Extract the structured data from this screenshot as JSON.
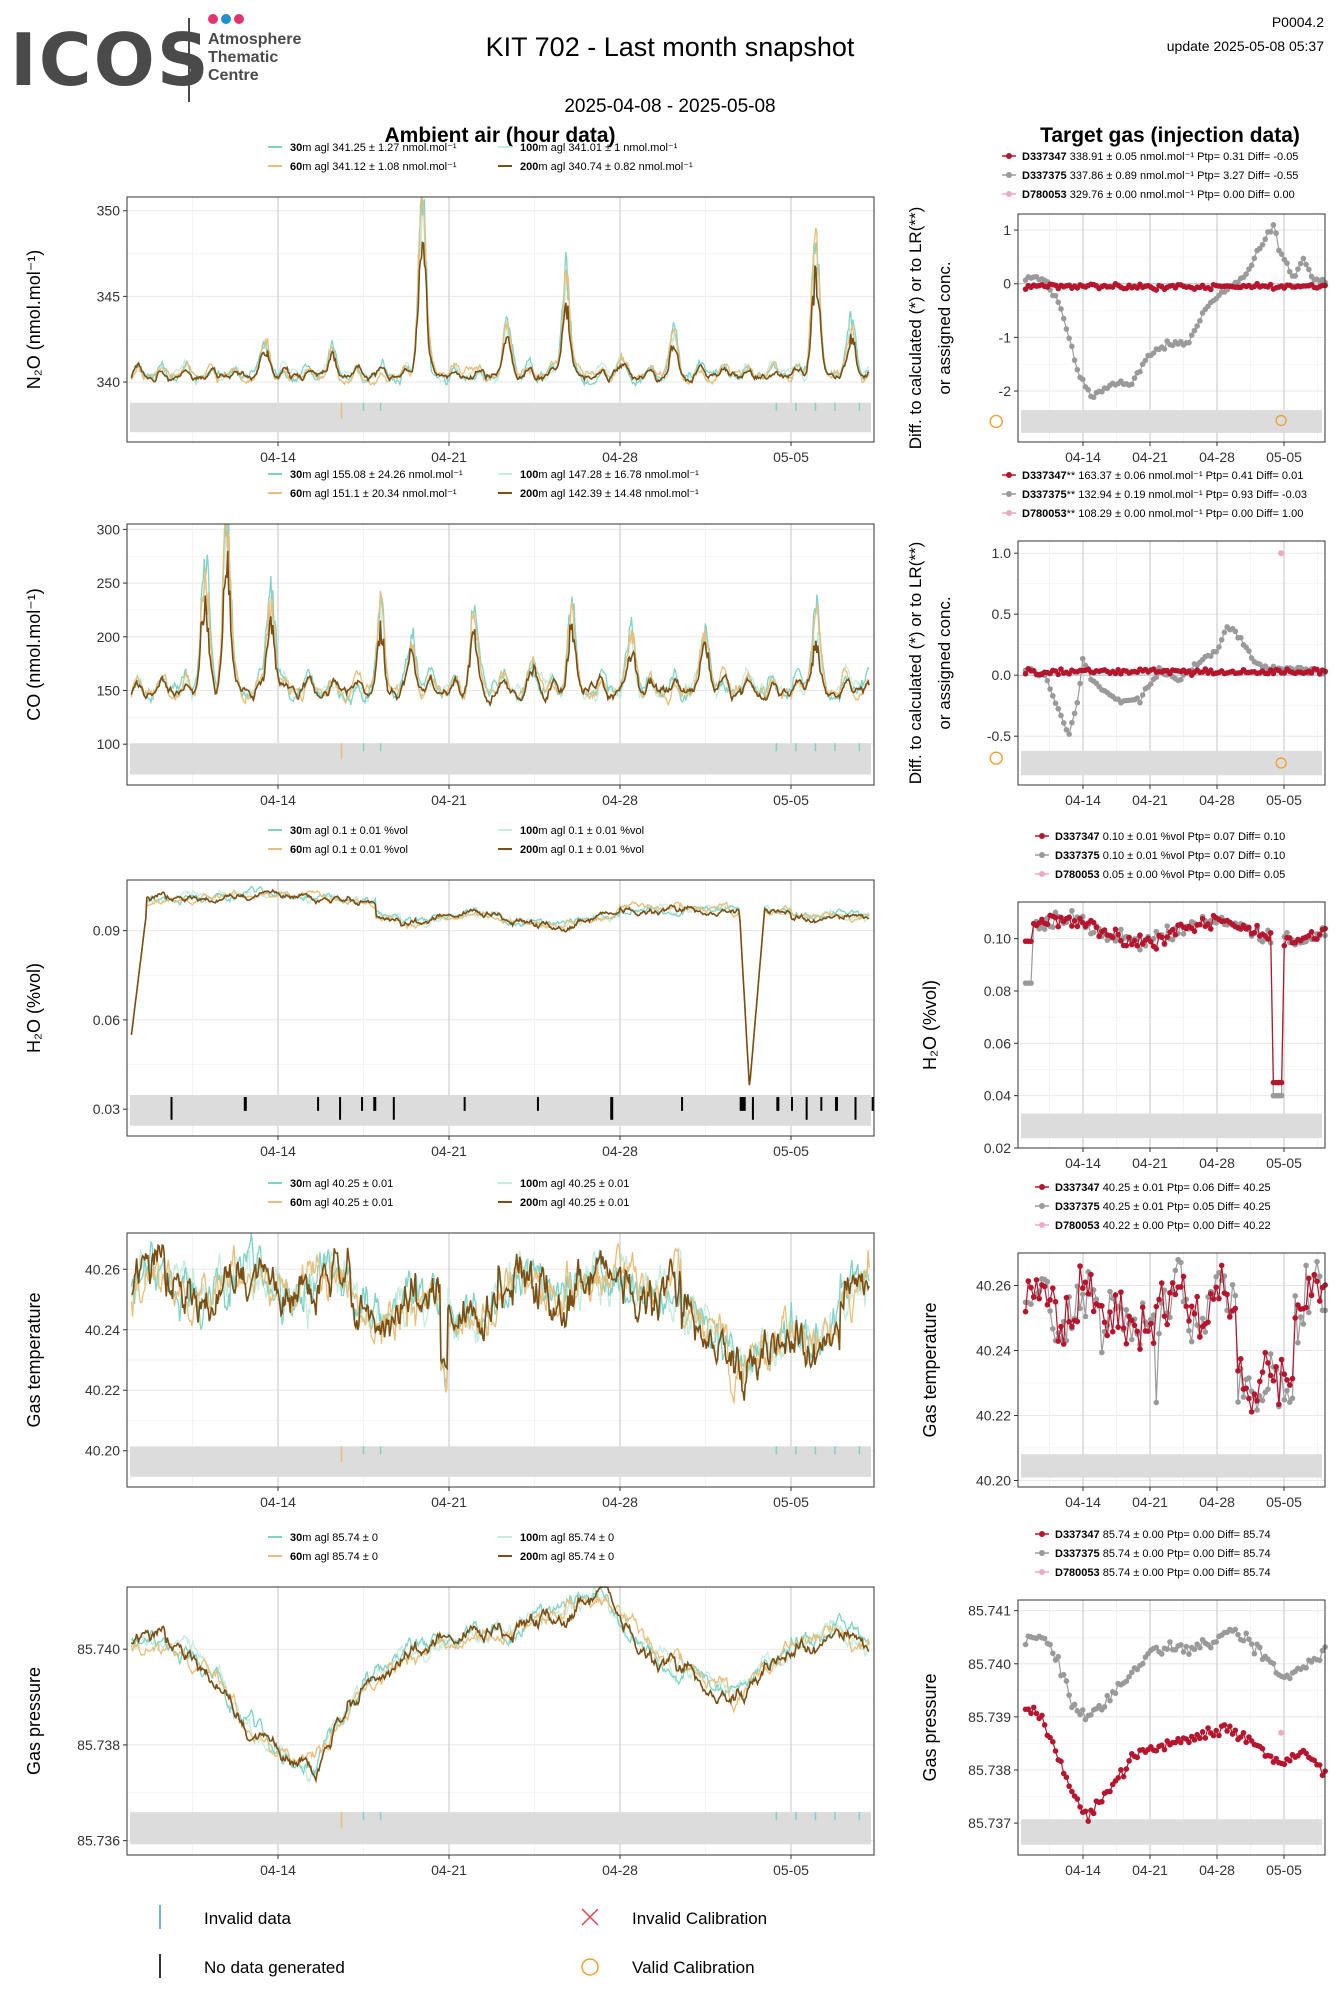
{
  "logo": {
    "word": "ICOS",
    "lines": [
      "Atmosphere",
      "Thematic",
      "Centre"
    ],
    "dot_colors": [
      "#e5336f",
      "#1f8fd7",
      "#e5336f"
    ]
  },
  "header": {
    "title": "KIT 702 - Last month snapshot",
    "date_range": "2025-04-08 - 2025-05-08",
    "code": "P0004.2",
    "update": "update  2025-05-08 05:37"
  },
  "sections": {
    "left": "Ambient air (hour data)",
    "right": "Target gas (injection data)"
  },
  "colors": {
    "30m": "#7fd3c6",
    "60m": "#e8be7a",
    "100m": "#c6ecdf",
    "200m": "#7b4f14",
    "D337347": "#b5152d",
    "D337375": "#9a9a9a",
    "D780053": "#f0a8c8",
    "invalid_data": "#5c9bd6",
    "no_data": "#000000",
    "invalid_cal": "#e8414a",
    "valid_cal": "#f0a030",
    "flag_band": "#dcdcdc"
  },
  "x_axis_ticks": [
    "04-14",
    "04-21",
    "04-28",
    "05-05"
  ],
  "chart_data": [
    {
      "id": "n2o",
      "type": "line",
      "ylabel": "N₂O (nmol.mol⁻¹)",
      "y_ticks": [
        "350",
        "345",
        "340"
      ],
      "y_tick_values": [
        350,
        345,
        340
      ],
      "ylim": [
        336.5,
        350.8
      ],
      "legend": [
        {
          "height": "30",
          "text": "m agl 341.25 ± 1.27 nmol.mol⁻¹"
        },
        {
          "height": "100",
          "text": "m agl 341.01 ± 1 nmol.mol⁻¹"
        },
        {
          "height": "60",
          "text": "m agl 341.12 ± 1.08 nmol.mol⁻¹"
        },
        {
          "height": "200",
          "text": "m agl 340.74 ± 0.82 nmol.mol⁻¹"
        }
      ],
      "base": 340.3,
      "events": [
        [
          5.5,
          1.8
        ],
        [
          8.2,
          1.0
        ],
        [
          11.9,
          9.2
        ],
        [
          15.4,
          2.5
        ],
        [
          17.8,
          5.0
        ],
        [
          20.0,
          1.0
        ],
        [
          22.2,
          1.9
        ],
        [
          28.0,
          6.8
        ],
        [
          29.5,
          2.5
        ],
        [
          32.1,
          2.8
        ],
        [
          36.6,
          2.5
        ],
        [
          40.6,
          0.8
        ]
      ],
      "validcal": [
        {
          "x": 35.4,
          "y": 337.7
        }
      ],
      "target": {
        "ylabel": [
          "Diff. to calculated (*) or to LR(**)",
          "or assigned conc."
        ],
        "y_ticks": [
          "1",
          "0",
          "-1",
          "-2"
        ],
        "y_tick_values": [
          1,
          0,
          -1,
          -2
        ],
        "ylim": [
          -2.95,
          1.3
        ],
        "legend": [
          {
            "name": "D337347",
            "text": " 338.91 ± 0.05 nmol.mol⁻¹ Ptp= 0.31 Diff= -0.05"
          },
          {
            "name": "D337375",
            "text": " 337.86 ± 0.89 nmol.mol⁻¹ Ptp= 3.27 Diff= -0.55"
          },
          {
            "name": "D780053",
            "text": " 329.76 ± 0.00 nmol.mol⁻¹ Ptp= 0.00 Diff= 0.00"
          }
        ],
        "red_level": -0.05,
        "grey_path": [
          [
            0,
            0.1
          ],
          [
            2,
            0.1
          ],
          [
            3.8,
            -0.5
          ],
          [
            5.5,
            -1.7
          ],
          [
            7,
            -2.1
          ],
          [
            9,
            -1.85
          ],
          [
            11,
            -1.9
          ],
          [
            12.5,
            -1.4
          ],
          [
            15,
            -1.1
          ],
          [
            17,
            -1.1
          ],
          [
            19,
            -0.4
          ],
          [
            21,
            -0.1
          ],
          [
            23,
            0.15
          ],
          [
            24.5,
            0.7
          ],
          [
            26,
            1.1
          ],
          [
            26.5,
            0.6
          ],
          [
            28,
            0.1
          ],
          [
            29,
            0.5
          ],
          [
            30,
            0.1
          ],
          [
            31,
            0.05
          ]
        ],
        "pink": [],
        "validcal": [
          {
            "x": 26.7,
            "y": -2.55
          }
        ]
      }
    },
    {
      "id": "co",
      "type": "line",
      "ylabel": "CO (nmol.mol⁻¹)",
      "y_ticks": [
        "300",
        "250",
        "200",
        "150",
        "100"
      ],
      "y_tick_values": [
        300,
        250,
        200,
        150,
        100
      ],
      "ylim": [
        62,
        305
      ],
      "legend": [
        {
          "height": "30",
          "text": "m agl 155.08 ± 24.26 nmol.mol⁻¹"
        },
        {
          "height": "100",
          "text": "m agl 147.28 ± 16.78 nmol.mol⁻¹"
        },
        {
          "height": "60",
          "text": "m agl 151.1 ± 20.34 nmol.mol⁻¹"
        },
        {
          "height": "200",
          "text": "m agl 142.39 ± 14.48 nmol.mol⁻¹"
        }
      ],
      "base": 148,
      "events": [
        [
          3.0,
          100
        ],
        [
          3.9,
          140
        ],
        [
          5.7,
          80
        ],
        [
          10.2,
          60
        ],
        [
          11.5,
          40
        ],
        [
          14.0,
          60
        ],
        [
          16.5,
          25
        ],
        [
          18.0,
          70
        ],
        [
          20.5,
          40
        ],
        [
          23.5,
          45
        ],
        [
          28.0,
          55
        ],
        [
          31.5,
          40
        ],
        [
          35.0,
          20
        ],
        [
          37.0,
          25
        ]
      ],
      "validcal": [
        {
          "x": 35.4,
          "y": 87
        }
      ],
      "target": {
        "ylabel": [
          "Diff. to calculated (*) or to LR(**)",
          "or assigned conc."
        ],
        "y_ticks": [
          "1.0",
          "0.5",
          "0.0",
          "-0.5"
        ],
        "y_tick_values": [
          1.0,
          0.5,
          0.0,
          -0.5
        ],
        "ylim": [
          -0.9,
          1.1
        ],
        "legend": [
          {
            "name": "D337347",
            "text": "** 163.37 ± 0.06 nmol.mol⁻¹ Ptp= 0.41 Diff= 0.01"
          },
          {
            "name": "D337375",
            "text": "** 132.94 ± 0.19 nmol.mol⁻¹ Ptp= 0.93 Diff= -0.03"
          },
          {
            "name": "D780053",
            "text": "** 108.29 ± 0.00 nmol.mol⁻¹ Ptp= 0.00 Diff= 1.00"
          }
        ],
        "red_level": 0.03,
        "grey_path": [
          [
            0,
            0.05
          ],
          [
            2,
            0.0
          ],
          [
            3.5,
            -0.3
          ],
          [
            4.5,
            -0.5
          ],
          [
            5.5,
            -0.2
          ],
          [
            6,
            0.15
          ],
          [
            7,
            -0.05
          ],
          [
            8.5,
            -0.15
          ],
          [
            10,
            -0.22
          ],
          [
            12,
            -0.2
          ],
          [
            14,
            0.05
          ],
          [
            16,
            -0.05
          ],
          [
            18,
            0.1
          ],
          [
            20,
            0.2
          ],
          [
            21,
            0.4
          ],
          [
            22.5,
            0.3
          ],
          [
            24,
            0.1
          ],
          [
            26,
            0.05
          ],
          [
            28,
            0.05
          ],
          [
            29,
            0.05
          ],
          [
            31,
            0.02
          ]
        ],
        "pink": [
          {
            "x": 26.7,
            "y": 1.0
          }
        ],
        "validcal": [
          {
            "x": 26.7,
            "y": -0.72
          }
        ]
      }
    },
    {
      "id": "h2o",
      "type": "line",
      "ylabel": "H₂O (%vol)",
      "y_ticks": [
        "0.09",
        "0.06",
        "0.03"
      ],
      "y_tick_values": [
        0.09,
        0.06,
        0.03
      ],
      "ylim": [
        0.021,
        0.107
      ],
      "legend": [
        {
          "height": "30",
          "text": "m agl 0.1 ± 0.01 %vol"
        },
        {
          "height": "100",
          "text": "m agl 0.1 ± 0.01 %vol"
        },
        {
          "height": "60",
          "text": "m agl 0.1 ± 0.01 %vol"
        },
        {
          "height": "200",
          "text": "m agl 0.1 ± 0.01 %vol"
        }
      ],
      "base": 0.095,
      "nodata": [
        1.6,
        4.6,
        7.6,
        8.5,
        9.4,
        9.9,
        10.7,
        13.6,
        16.6,
        19.6,
        22.5,
        24.9,
        25.4,
        26.4,
        27.0,
        27.6,
        28.2,
        28.8,
        29.6,
        30.3
      ],
      "target": {
        "ylabel": [
          "H₂O (%vol)"
        ],
        "y_ticks": [
          "0.10",
          "0.08",
          "0.06",
          "0.04",
          "0.02"
        ],
        "y_tick_values": [
          0.1,
          0.08,
          0.06,
          0.04,
          0.02
        ],
        "ylim": [
          0.02,
          0.114
        ],
        "legend": [
          {
            "name": "D337347",
            "text": " 0.10 ± 0.01 %vol Ptp= 0.07 Diff= 0.10"
          },
          {
            "name": "D337375",
            "text": " 0.10 ± 0.01 %vol Ptp= 0.07 Diff= 0.10"
          },
          {
            "name": "D780053",
            "text": " 0.05 ± 0.00 %vol Ptp= 0.00 Diff= 0.05"
          }
        ],
        "pink": [],
        "validcal": []
      }
    },
    {
      "id": "temp",
      "type": "line",
      "ylabel": "Gas temperature",
      "y_ticks": [
        "40.26",
        "40.24",
        "40.22",
        "40.20"
      ],
      "y_tick_values": [
        40.26,
        40.24,
        40.22,
        40.2
      ],
      "ylim": [
        40.188,
        40.272
      ],
      "legend": [
        {
          "height": "30",
          "text": "m agl 40.25 ± 0.01"
        },
        {
          "height": "100",
          "text": "m agl 40.25 ± 0.01"
        },
        {
          "height": "60",
          "text": "m agl 40.25 ± 0.01"
        },
        {
          "height": "200",
          "text": "m agl 40.25 ± 0.01"
        }
      ],
      "base": 40.255,
      "target": {
        "ylabel": [
          "Gas temperature"
        ],
        "y_ticks": [
          "40.26",
          "40.24",
          "40.22",
          "40.20"
        ],
        "y_tick_values": [
          40.26,
          40.24,
          40.22,
          40.2
        ],
        "ylim": [
          40.198,
          40.27
        ],
        "legend": [
          {
            "name": "D337347",
            "text": " 40.25 ± 0.01  Ptp= 0.06 Diff= 40.25"
          },
          {
            "name": "D337375",
            "text": " 40.25 ± 0.01  Ptp= 0.05 Diff= 40.25"
          },
          {
            "name": "D780053",
            "text": " 40.22 ± 0.00  Ptp= 0.00 Diff= 40.22"
          }
        ],
        "pink": [],
        "validcal": []
      }
    },
    {
      "id": "press",
      "type": "line",
      "ylabel": "Gas pressure",
      "y_ticks": [
        "85.740",
        "85.738",
        "85.736"
      ],
      "y_tick_values": [
        85.74,
        85.738,
        85.736
      ],
      "ylim": [
        85.7357,
        85.7413
      ],
      "legend": [
        {
          "height": "30",
          "text": "m agl 85.74 ± 0"
        },
        {
          "height": "100",
          "text": "m agl 85.74 ± 0"
        },
        {
          "height": "60",
          "text": "m agl 85.74 ± 0"
        },
        {
          "height": "200",
          "text": "m agl 85.74 ± 0"
        }
      ],
      "target": {
        "ylabel": [
          "Gas pressure"
        ],
        "y_ticks": [
          "85.741",
          "85.740",
          "85.739",
          "85.738",
          "85.737"
        ],
        "y_tick_values": [
          85.741,
          85.74,
          85.739,
          85.738,
          85.737
        ],
        "ylim": [
          85.7364,
          85.7412
        ],
        "legend": [
          {
            "name": "D337347",
            "text": " 85.74 ± 0.00  Ptp= 0.00 Diff= 85.74"
          },
          {
            "name": "D337375",
            "text": " 85.74 ± 0.00  Ptp= 0.00 Diff= 85.74"
          },
          {
            "name": "D780053",
            "text": " 85.74 ± 0.00  Ptp= 0.00 Diff= 85.74"
          }
        ],
        "grey_path": [
          [
            0,
            85.7405
          ],
          [
            2,
            85.7405
          ],
          [
            3.5,
            85.74
          ],
          [
            5,
            85.7392
          ],
          [
            6.5,
            85.739
          ],
          [
            8,
            85.7392
          ],
          [
            9.5,
            85.7395
          ],
          [
            11,
            85.7398
          ],
          [
            13,
            85.7402
          ],
          [
            15,
            85.7403
          ],
          [
            17,
            85.7403
          ],
          [
            19,
            85.7404
          ],
          [
            21,
            85.7406
          ],
          [
            23,
            85.7405
          ],
          [
            24.5,
            85.7402
          ],
          [
            26,
            85.74
          ],
          [
            27,
            85.7397
          ],
          [
            28,
            85.7398
          ],
          [
            29.5,
            85.74
          ],
          [
            31,
            85.7402
          ]
        ],
        "red_path": [
          [
            0,
            85.7392
          ],
          [
            2,
            85.7389
          ],
          [
            3.5,
            85.7382
          ],
          [
            5,
            85.7375
          ],
          [
            6.5,
            85.7371
          ],
          [
            8,
            85.7374
          ],
          [
            9.5,
            85.7378
          ],
          [
            11,
            85.7382
          ],
          [
            13,
            85.7384
          ],
          [
            15,
            85.7385
          ],
          [
            17,
            85.7386
          ],
          [
            19,
            85.7387
          ],
          [
            21,
            85.7388
          ],
          [
            23,
            85.7386
          ],
          [
            24.5,
            85.7384
          ],
          [
            26,
            85.7382
          ],
          [
            27,
            85.7382
          ],
          [
            28,
            85.7383
          ],
          [
            29.5,
            85.7383
          ],
          [
            31,
            85.738
          ]
        ],
        "pink": [
          {
            "x": 26.7,
            "y": 85.7387
          }
        ],
        "validcal": []
      }
    }
  ],
  "bottom_legend": {
    "invalid_data": "Invalid data",
    "no_data": "No data generated",
    "invalid_cal": "Invalid Calibration",
    "valid_cal": "Valid Calibration"
  }
}
